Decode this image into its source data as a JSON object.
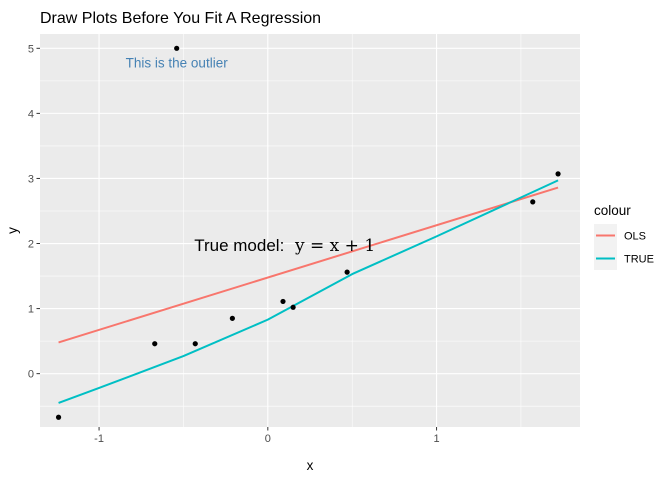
{
  "chart_data": {
    "type": "scatter",
    "title": "Draw Plots Before You Fit A Regression",
    "xlabel": "x",
    "ylabel": "y",
    "xlim": [
      -1.35,
      1.85
    ],
    "ylim": [
      -0.82,
      5.22
    ],
    "x_ticks": [
      -1,
      0,
      1
    ],
    "y_ticks": [
      0,
      1,
      2,
      3,
      4,
      5
    ],
    "grid": true,
    "points": [
      {
        "x": -1.24,
        "y": -0.67
      },
      {
        "x": -0.67,
        "y": 0.46
      },
      {
        "x": -0.43,
        "y": 0.46
      },
      {
        "x": -0.21,
        "y": 0.85
      },
      {
        "x": 0.09,
        "y": 1.11
      },
      {
        "x": 0.15,
        "y": 1.02
      },
      {
        "x": 0.47,
        "y": 1.56
      },
      {
        "x": 1.57,
        "y": 2.64
      },
      {
        "x": 1.72,
        "y": 3.07
      },
      {
        "x": -0.54,
        "y": 5.0
      }
    ],
    "series": [
      {
        "name": "OLS",
        "color": "#F8766D",
        "x": [
          -1.24,
          1.72
        ],
        "y": [
          0.48,
          2.86
        ]
      },
      {
        "name": "TRUE",
        "color": "#00BFC4",
        "x": [
          -1.24,
          -1.0,
          -0.5,
          0.0,
          0.5,
          1.0,
          1.72
        ],
        "y": [
          -0.45,
          -0.22,
          0.27,
          0.83,
          1.53,
          2.11,
          2.97
        ]
      }
    ],
    "annotations": [
      {
        "text": "This is the outlier",
        "x": -0.54,
        "y": 4.78,
        "color": "#4682B4"
      },
      {
        "text": "True model:",
        "math": "y = x + 1",
        "x": 0.1,
        "y": 1.98,
        "color": "#000000"
      }
    ],
    "legend": {
      "title": "colour",
      "position": "right",
      "entries": [
        "OLS",
        "TRUE"
      ]
    }
  }
}
